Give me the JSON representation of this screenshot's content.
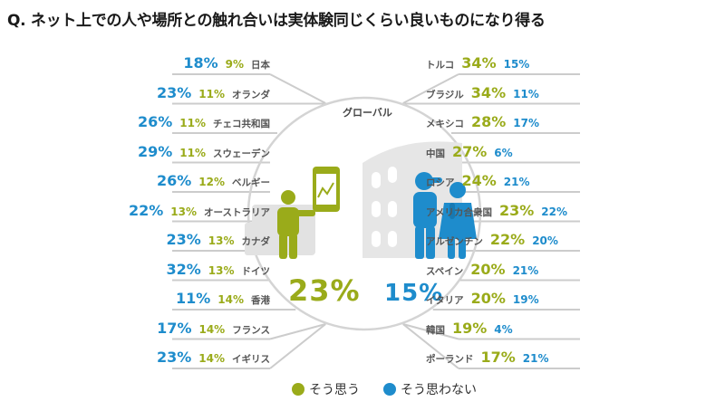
{
  "title": "Q. ネット上での人や場所との触れ合いは実体験同じくらい良いものになり得る",
  "colors": {
    "yes": "#9aab1a",
    "no": "#1e8ccc",
    "line": "#cccccc"
  },
  "chart_data": {
    "type": "table",
    "series": [
      {
        "name": "そう思う",
        "key": "yes"
      },
      {
        "name": "そう思わない",
        "key": "no"
      }
    ],
    "global": {
      "label": "グローバル",
      "yes": "23%",
      "no": "15%"
    },
    "left": [
      {
        "country": "日本",
        "yes": "9%",
        "no": "18%"
      },
      {
        "country": "オランダ",
        "yes": "11%",
        "no": "23%"
      },
      {
        "country": "チェコ共和国",
        "yes": "11%",
        "no": "26%"
      },
      {
        "country": "スウェーデン",
        "yes": "11%",
        "no": "29%"
      },
      {
        "country": "ベルギー",
        "yes": "12%",
        "no": "26%"
      },
      {
        "country": "オーストラリア",
        "yes": "13%",
        "no": "22%"
      },
      {
        "country": "カナダ",
        "yes": "13%",
        "no": "23%"
      },
      {
        "country": "ドイツ",
        "yes": "13%",
        "no": "32%"
      },
      {
        "country": "香港",
        "yes": "14%",
        "no": "11%"
      },
      {
        "country": "フランス",
        "yes": "14%",
        "no": "17%"
      },
      {
        "country": "イギリス",
        "yes": "14%",
        "no": "23%"
      }
    ],
    "right": [
      {
        "country": "トルコ",
        "yes": "34%",
        "no": "15%"
      },
      {
        "country": "ブラジル",
        "yes": "34%",
        "no": "11%"
      },
      {
        "country": "メキシコ",
        "yes": "28%",
        "no": "17%"
      },
      {
        "country": "中国",
        "yes": "27%",
        "no": "6%"
      },
      {
        "country": "ロシア",
        "yes": "24%",
        "no": "21%"
      },
      {
        "country": "アメリカ合衆国",
        "yes": "23%",
        "no": "22%"
      },
      {
        "country": "アルゼンチン",
        "yes": "22%",
        "no": "20%"
      },
      {
        "country": "スペイン",
        "yes": "20%",
        "no": "21%"
      },
      {
        "country": "イタリア",
        "yes": "20%",
        "no": "19%"
      },
      {
        "country": "韓国",
        "yes": "19%",
        "no": "4%"
      },
      {
        "country": "ポーランド",
        "yes": "17%",
        "no": "21%"
      }
    ]
  },
  "legend": [
    {
      "label": "そう思う",
      "color_key": "yes"
    },
    {
      "label": "そう思わない",
      "color_key": "no"
    }
  ]
}
